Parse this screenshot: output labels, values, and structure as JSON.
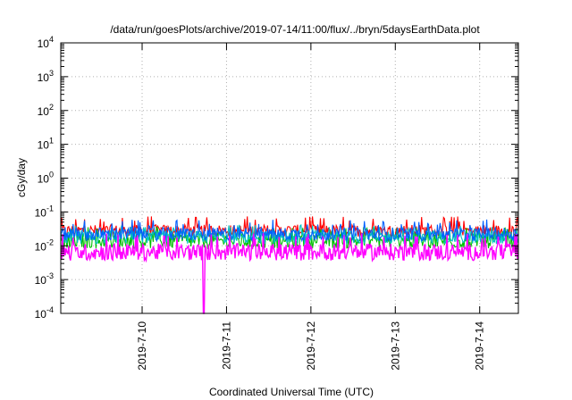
{
  "chart_data": {
    "type": "line",
    "title": "/data/run/goesPlots/archive/2019-07-14/11:00/flux/../bryn/5daysEarthData.plot",
    "xlabel": "Coordinated Universal Time (UTC)",
    "ylabel": "cGy/day",
    "yscale": "log",
    "ylim": [
      0.0001,
      10000
    ],
    "xlim": [
      "2019-07-09 00:52",
      "2019-07-14 11:00"
    ],
    "grid": true,
    "legend": "none",
    "y_ticks": [
      {
        "value": 0.0001,
        "base": "10",
        "exp": "-4"
      },
      {
        "value": 0.001,
        "base": "10",
        "exp": "-3"
      },
      {
        "value": 0.01,
        "base": "10",
        "exp": "-2"
      },
      {
        "value": 0.1,
        "base": "10",
        "exp": "-1"
      },
      {
        "value": 1,
        "base": "10",
        "exp": "0"
      },
      {
        "value": 10,
        "base": "10",
        "exp": "1"
      },
      {
        "value": 100,
        "base": "10",
        "exp": "2"
      },
      {
        "value": 1000,
        "base": "10",
        "exp": "3"
      },
      {
        "value": 10000,
        "base": "10",
        "exp": "4"
      }
    ],
    "x_ticks": [
      {
        "value": "2019-07-10 00:00",
        "label": "2019-7-10"
      },
      {
        "value": "2019-07-11 00:00",
        "label": "2019-7-11"
      },
      {
        "value": "2019-07-12 00:00",
        "label": "2019-7-12"
      },
      {
        "value": "2019-07-13 00:00",
        "label": "2019-7-13"
      },
      {
        "value": "2019-07-14 00:00",
        "label": "2019-7-14"
      }
    ],
    "series": [
      {
        "color": "#ff0000",
        "baseline": 0.028,
        "spread": 0.35,
        "spike": 0.062,
        "dip": null
      },
      {
        "color": "#00c000",
        "baseline": 0.014,
        "spread": 0.45,
        "spike": 0.03,
        "dip": null
      },
      {
        "color": "#00c0c0",
        "baseline": 0.018,
        "spread": 0.4,
        "spike": 0.035,
        "dip": null
      },
      {
        "color": "#0060ff",
        "baseline": 0.022,
        "spread": 0.4,
        "spike": 0.05,
        "dip": null
      },
      {
        "color": "#ff00ff",
        "baseline": 0.0065,
        "spread": 0.5,
        "spike": 0.02,
        "dip": {
          "start": "2019-07-10 17:10",
          "end": "2019-07-10 17:50",
          "value": 0.0001
        }
      }
    ]
  }
}
